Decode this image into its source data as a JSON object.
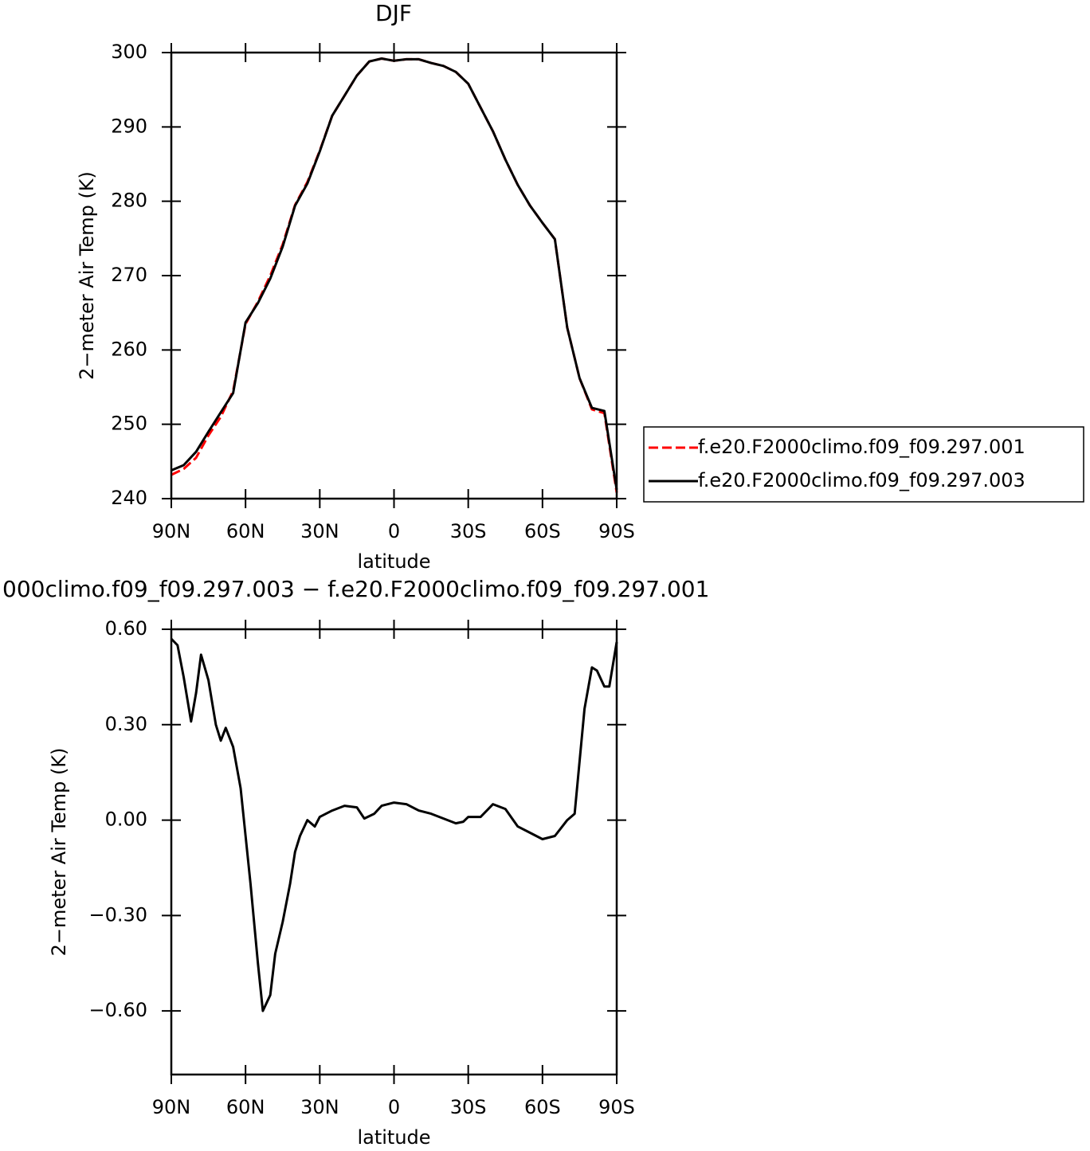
{
  "chart_data": [
    {
      "type": "line",
      "title": "DJF",
      "xlabel": "latitude",
      "ylabel": "2−meter Air Temp (K)",
      "x": [
        90,
        85,
        80,
        75,
        70,
        65,
        60,
        55,
        50,
        45,
        40,
        35,
        30,
        25,
        20,
        15,
        10,
        5,
        0,
        -5,
        -10,
        -15,
        -20,
        -25,
        -30,
        -35,
        -40,
        -45,
        -50,
        -55,
        -60,
        -65,
        -70,
        -75,
        -80,
        -85,
        -90
      ],
      "series": [
        {
          "name": "f.e20.F2000climo.f09_f09.297.001",
          "color": "#ff0000",
          "dashed": true,
          "values": [
            243.2,
            244,
            245.5,
            248.5,
            251,
            254.5,
            263.5,
            266.5,
            270,
            274.2,
            279.5,
            282.6,
            286.8,
            291.5,
            294.2,
            296.9,
            298.8,
            299.2,
            298.9,
            299.1,
            299.1,
            298.6,
            298.2,
            297.4,
            295.8,
            292.6,
            289.4,
            285.6,
            282.2,
            279.4,
            277.1,
            274.9,
            263,
            256.2,
            252,
            251.5,
            240.8
          ]
        },
        {
          "name": "f.e20.F2000climo.f09_f09.297.003",
          "color": "#000000",
          "dashed": false,
          "values": [
            243.8,
            244.5,
            246.3,
            249,
            251.6,
            254.2,
            263.7,
            266.3,
            269.6,
            273.9,
            279.4,
            282.4,
            286.7,
            291.5,
            294.2,
            296.9,
            298.8,
            299.2,
            298.9,
            299.1,
            299.1,
            298.6,
            298.2,
            297.4,
            295.8,
            292.6,
            289.4,
            285.6,
            282.2,
            279.4,
            277.1,
            274.9,
            263,
            256.2,
            252.2,
            251.8,
            241.2
          ]
        }
      ],
      "xlim": [
        90,
        -90
      ],
      "xticks": [
        {
          "value": 90,
          "label": "90N"
        },
        {
          "value": 60,
          "label": "60N"
        },
        {
          "value": 30,
          "label": "30N"
        },
        0,
        {
          "value": -30,
          "label": "30S"
        },
        {
          "value": -60,
          "label": "60S"
        },
        {
          "value": -90,
          "label": "90S"
        }
      ],
      "ylim": [
        240,
        300
      ],
      "yticks": [
        240,
        250,
        260,
        270,
        280,
        290,
        300
      ],
      "legend": "right"
    },
    {
      "type": "line",
      "title": "000climo.f09_f09.297.003 − f.e20.F2000climo.f09_f09.297.001",
      "xlabel": "latitude",
      "ylabel": "2−meter Air Temp (K)",
      "x": [
        90,
        87.5,
        85,
        82,
        80,
        78,
        75,
        72,
        70,
        68,
        65,
        62,
        60,
        58,
        55,
        53,
        50,
        48,
        45,
        42,
        40,
        38,
        35,
        32,
        30,
        25,
        20,
        15,
        12,
        8,
        5,
        0,
        -5,
        -10,
        -15,
        -20,
        -25,
        -28,
        -30,
        -35,
        -40,
        -45,
        -50,
        -55,
        -60,
        -65,
        -68,
        -70,
        -73,
        -77,
        -80,
        -82,
        -85,
        -87,
        -90
      ],
      "color": "#000000",
      "values": [
        0.57,
        0.55,
        0.45,
        0.31,
        0.4,
        0.52,
        0.44,
        0.3,
        0.25,
        0.29,
        0.23,
        0.1,
        -0.05,
        -0.2,
        -0.45,
        -0.6,
        -0.55,
        -0.42,
        -0.32,
        -0.2,
        -0.1,
        -0.05,
        0,
        -0.02,
        0.01,
        0.03,
        0.045,
        0.04,
        0.005,
        0.02,
        0.045,
        0.055,
        0.05,
        0.03,
        0.02,
        0.005,
        -0.01,
        -0.005,
        0.01,
        0.01,
        0.05,
        0.035,
        -0.02,
        -0.04,
        -0.06,
        -0.05,
        -0.02,
        0,
        0.02,
        0.35,
        0.48,
        0.47,
        0.42,
        0.42,
        0.56
      ],
      "xlim": [
        90,
        -90
      ],
      "xticks": [
        {
          "value": 90,
          "label": "90N"
        },
        {
          "value": 60,
          "label": "60N"
        },
        {
          "value": 30,
          "label": "30N"
        },
        0,
        {
          "value": -30,
          "label": "30S"
        },
        {
          "value": -60,
          "label": "60S"
        },
        {
          "value": -90,
          "label": "90S"
        }
      ],
      "ylim": [
        -0.8,
        0.6
      ],
      "yticks": [
        {
          "value": -0.6,
          "label": "−0.60"
        },
        {
          "value": -0.3,
          "label": "−0.30"
        },
        {
          "value": 0,
          "label": "0.00"
        },
        {
          "value": 0.3,
          "label": "0.30"
        },
        {
          "value": 0.6,
          "label": "0.60"
        }
      ]
    }
  ]
}
